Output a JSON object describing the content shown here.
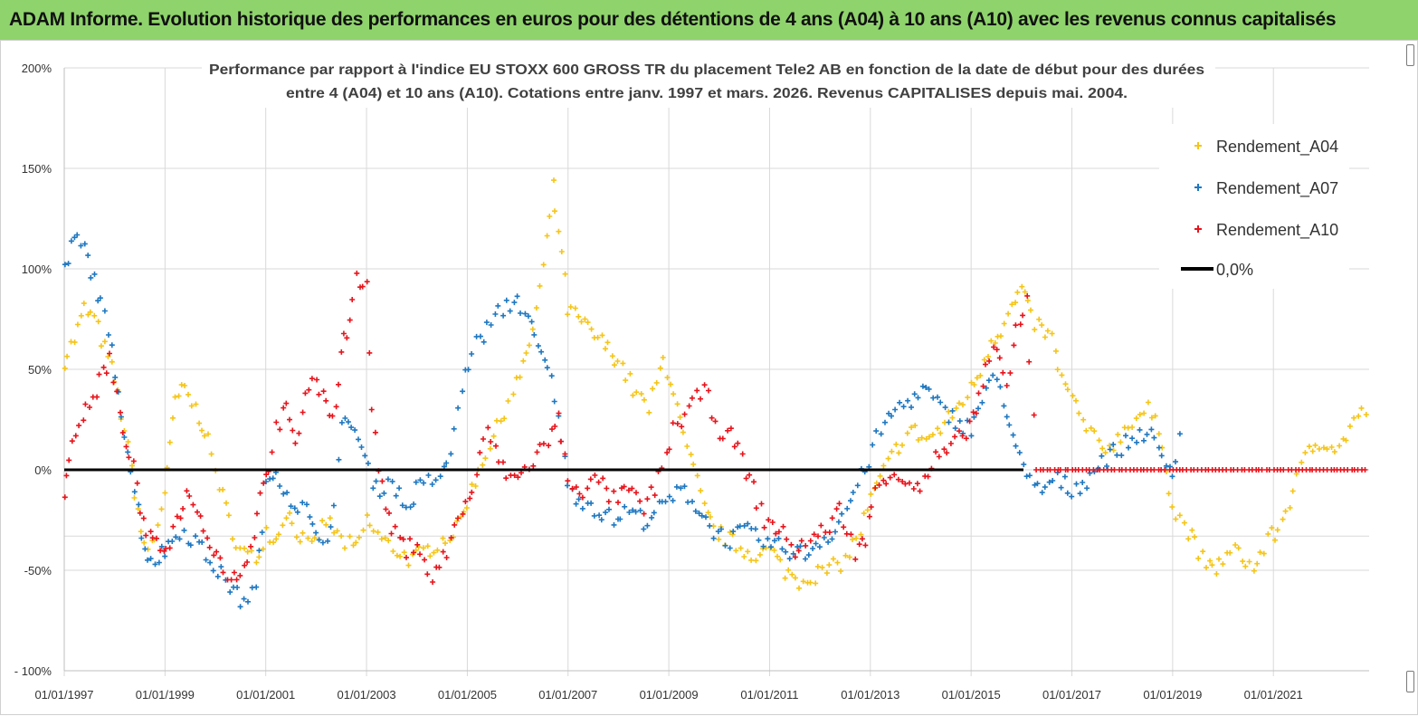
{
  "header": {
    "title": "ADAM Informe. Evolution historique des performances en euros pour des détentions de 4 ans (A04) à 10 ans (A10) avec les revenus connus capitalisés"
  },
  "colors": {
    "banner": "#8fd36c",
    "a04": "#f5c518",
    "a07": "#1f78c1",
    "a10": "#e8141c",
    "zero_line": "#000000",
    "grid": "#d9d9d9"
  },
  "chart_data": {
    "type": "scatter",
    "title_lines": [
      "Performance par rapport à l'indice EU STOXX 600 GROSS TR  du placement Tele2 AB en fonction de la date de début pour des durées",
      "entre 4 (A04) et 10 ans (A10). Cotations entre janv. 1997 et mars. 2026. Revenus CAPITALISES depuis mai. 2004."
    ],
    "x_ticks": [
      "01/01/1997",
      "01/01/1999",
      "01/01/2001",
      "01/01/2003",
      "01/01/2005",
      "01/01/2007",
      "01/01/2009",
      "01/01/2011",
      "01/01/2013",
      "01/01/2015",
      "01/01/2017",
      "01/01/2019",
      "01/01/2021"
    ],
    "y_ticks": [
      "200%",
      "150%",
      "100%",
      "50%",
      "0%",
      "-50%",
      "- 100%"
    ],
    "x_range": [
      1997.0,
      2022.9
    ],
    "y_range": [
      -100,
      200
    ],
    "legend": {
      "position": "top-right",
      "a04": "Rendement_A04",
      "a07": "Rendement_A07",
      "a10": "Rendement_A10",
      "zero": "0,0%"
    },
    "series": [
      {
        "name": "Rendement_A04",
        "key": "a04",
        "points": [
          [
            1997.0,
            55
          ],
          [
            1997.2,
            65
          ],
          [
            1997.4,
            80
          ],
          [
            1997.6,
            75
          ],
          [
            1997.8,
            60
          ],
          [
            1998.0,
            45
          ],
          [
            1998.2,
            20
          ],
          [
            1998.4,
            -10
          ],
          [
            1998.6,
            -40
          ],
          [
            1998.8,
            -35
          ],
          [
            1999.0,
            -10
          ],
          [
            1999.1,
            10
          ],
          [
            1999.2,
            35
          ],
          [
            1999.4,
            40
          ],
          [
            1999.6,
            30
          ],
          [
            1999.8,
            20
          ],
          [
            2000.0,
            0
          ],
          [
            2000.2,
            -20
          ],
          [
            2000.5,
            -40
          ],
          [
            2000.8,
            -45
          ],
          [
            2001.0,
            -30
          ],
          [
            2001.2,
            -35
          ],
          [
            2001.4,
            -20
          ],
          [
            2001.6,
            -30
          ],
          [
            2001.9,
            -40
          ],
          [
            2002.2,
            -25
          ],
          [
            2002.5,
            -35
          ],
          [
            2002.8,
            -40
          ],
          [
            2003.0,
            -25
          ],
          [
            2003.3,
            -35
          ],
          [
            2003.6,
            -40
          ],
          [
            2003.9,
            -45
          ],
          [
            2004.2,
            -40
          ],
          [
            2004.5,
            -35
          ],
          [
            2004.8,
            -30
          ],
          [
            2005.0,
            -15
          ],
          [
            2005.3,
            5
          ],
          [
            2005.6,
            20
          ],
          [
            2005.9,
            40
          ],
          [
            2006.1,
            50
          ],
          [
            2006.3,
            70
          ],
          [
            2006.5,
            100
          ],
          [
            2006.7,
            140
          ],
          [
            2006.8,
            120
          ],
          [
            2007.0,
            80
          ],
          [
            2007.2,
            75
          ],
          [
            2007.4,
            70
          ],
          [
            2007.6,
            65
          ],
          [
            2007.8,
            60
          ],
          [
            2008.0,
            55
          ],
          [
            2008.3,
            40
          ],
          [
            2008.6,
            30
          ],
          [
            2008.9,
            55
          ],
          [
            2009.1,
            40
          ],
          [
            2009.3,
            15
          ],
          [
            2009.5,
            0
          ],
          [
            2009.7,
            -20
          ],
          [
            2009.9,
            -30
          ],
          [
            2010.2,
            -35
          ],
          [
            2010.5,
            -40
          ],
          [
            2010.8,
            -42
          ],
          [
            2011.0,
            -40
          ],
          [
            2011.3,
            -50
          ],
          [
            2011.6,
            -55
          ],
          [
            2011.9,
            -52
          ],
          [
            2012.2,
            -50
          ],
          [
            2012.5,
            -45
          ],
          [
            2012.8,
            -30
          ],
          [
            2013.0,
            -15
          ],
          [
            2013.2,
            -5
          ],
          [
            2013.5,
            10
          ],
          [
            2013.8,
            20
          ],
          [
            2014.1,
            15
          ],
          [
            2014.4,
            20
          ],
          [
            2014.7,
            30
          ],
          [
            2015.0,
            40
          ],
          [
            2015.2,
            50
          ],
          [
            2015.4,
            65
          ],
          [
            2015.6,
            70
          ],
          [
            2015.8,
            80
          ],
          [
            2016.0,
            90
          ],
          [
            2016.2,
            75
          ],
          [
            2016.4,
            70
          ],
          [
            2016.6,
            65
          ],
          [
            2016.8,
            45
          ],
          [
            2017.0,
            35
          ],
          [
            2017.3,
            20
          ],
          [
            2017.6,
            10
          ],
          [
            2017.9,
            15
          ],
          [
            2018.2,
            25
          ],
          [
            2018.5,
            30
          ],
          [
            2018.8,
            15
          ],
          [
            2019.0,
            -20
          ],
          [
            2019.3,
            -30
          ],
          [
            2019.6,
            -45
          ],
          [
            2019.8,
            -50
          ],
          [
            2020.0,
            -45
          ],
          [
            2020.3,
            -40
          ],
          [
            2020.6,
            -50
          ],
          [
            2020.9,
            -35
          ],
          [
            2021.1,
            -30
          ],
          [
            2021.4,
            -10
          ],
          [
            2021.7,
            10
          ],
          [
            2022.0,
            15
          ],
          [
            2022.3,
            10
          ],
          [
            2022.6,
            25
          ],
          [
            2022.9,
            30
          ]
        ]
      },
      {
        "name": "Rendement_A07",
        "key": "a07",
        "points": [
          [
            1997.0,
            100
          ],
          [
            1997.2,
            115
          ],
          [
            1997.4,
            110
          ],
          [
            1997.6,
            95
          ],
          [
            1997.8,
            75
          ],
          [
            1998.0,
            50
          ],
          [
            1998.2,
            20
          ],
          [
            1998.4,
            -10
          ],
          [
            1998.6,
            -40
          ],
          [
            1998.8,
            -45
          ],
          [
            1999.0,
            -40
          ],
          [
            1999.3,
            -30
          ],
          [
            1999.6,
            -35
          ],
          [
            1999.9,
            -45
          ],
          [
            2000.2,
            -55
          ],
          [
            2000.5,
            -65
          ],
          [
            2000.8,
            -60
          ],
          [
            2001.0,
            -10
          ],
          [
            2001.2,
            0
          ],
          [
            2001.5,
            -15
          ],
          [
            2001.8,
            -20
          ],
          [
            2002.0,
            -35
          ],
          [
            2002.3,
            -30
          ],
          [
            2002.5,
            20
          ],
          [
            2002.7,
            25
          ],
          [
            2002.9,
            10
          ],
          [
            2003.2,
            -10
          ],
          [
            2003.5,
            -5
          ],
          [
            2003.8,
            -20
          ],
          [
            2004.0,
            -10
          ],
          [
            2004.3,
            -5
          ],
          [
            2004.6,
            0
          ],
          [
            2004.9,
            40
          ],
          [
            2005.1,
            60
          ],
          [
            2005.4,
            70
          ],
          [
            2005.7,
            80
          ],
          [
            2006.0,
            85
          ],
          [
            2006.2,
            75
          ],
          [
            2006.4,
            60
          ],
          [
            2006.6,
            50
          ],
          [
            2006.8,
            30
          ],
          [
            2007.0,
            -10
          ],
          [
            2007.3,
            -15
          ],
          [
            2007.6,
            -20
          ],
          [
            2007.9,
            -25
          ],
          [
            2008.2,
            -20
          ],
          [
            2008.5,
            -25
          ],
          [
            2008.8,
            -20
          ],
          [
            2009.0,
            -15
          ],
          [
            2009.3,
            -10
          ],
          [
            2009.6,
            -20
          ],
          [
            2009.9,
            -30
          ],
          [
            2010.2,
            -35
          ],
          [
            2010.5,
            -30
          ],
          [
            2010.8,
            -35
          ],
          [
            2011.1,
            -38
          ],
          [
            2011.4,
            -40
          ],
          [
            2011.7,
            -42
          ],
          [
            2012.0,
            -35
          ],
          [
            2012.3,
            -30
          ],
          [
            2012.6,
            -15
          ],
          [
            2012.9,
            0
          ],
          [
            2013.2,
            20
          ],
          [
            2013.5,
            30
          ],
          [
            2013.8,
            35
          ],
          [
            2014.1,
            40
          ],
          [
            2014.4,
            30
          ],
          [
            2014.7,
            25
          ],
          [
            2015.0,
            20
          ],
          [
            2015.3,
            40
          ],
          [
            2015.5,
            45
          ],
          [
            2015.7,
            30
          ],
          [
            2015.9,
            10
          ],
          [
            2016.1,
            -5
          ],
          [
            2016.4,
            -10
          ],
          [
            2016.7,
            -5
          ],
          [
            2017.0,
            -10
          ],
          [
            2017.3,
            -5
          ],
          [
            2017.6,
            5
          ],
          [
            2017.9,
            10
          ],
          [
            2018.2,
            15
          ],
          [
            2018.5,
            20
          ],
          [
            2018.8,
            5
          ],
          [
            2019.0,
            0
          ],
          [
            2019.2,
            25
          ]
        ]
      },
      {
        "name": "Rendement_A10",
        "key": "a10",
        "points": [
          [
            1997.0,
            -10
          ],
          [
            1997.1,
            5
          ],
          [
            1997.3,
            25
          ],
          [
            1997.5,
            30
          ],
          [
            1997.7,
            45
          ],
          [
            1997.9,
            55
          ],
          [
            1998.1,
            25
          ],
          [
            1998.3,
            10
          ],
          [
            1998.5,
            -20
          ],
          [
            1998.7,
            -35
          ],
          [
            1998.9,
            -40
          ],
          [
            1999.1,
            -35
          ],
          [
            1999.3,
            -20
          ],
          [
            1999.5,
            -10
          ],
          [
            1999.7,
            -25
          ],
          [
            1999.9,
            -35
          ],
          [
            2000.1,
            -45
          ],
          [
            2000.3,
            -55
          ],
          [
            2000.5,
            -50
          ],
          [
            2000.7,
            -40
          ],
          [
            2000.9,
            -10
          ],
          [
            2001.0,
            -5
          ],
          [
            2001.2,
            20
          ],
          [
            2001.4,
            30
          ],
          [
            2001.6,
            10
          ],
          [
            2001.8,
            40
          ],
          [
            2002.0,
            45
          ],
          [
            2002.2,
            30
          ],
          [
            2002.4,
            30
          ],
          [
            2002.5,
            60
          ],
          [
            2002.6,
            70
          ],
          [
            2002.8,
            95
          ],
          [
            2003.0,
            90
          ],
          [
            2003.1,
            30
          ],
          [
            2003.3,
            -10
          ],
          [
            2003.5,
            -30
          ],
          [
            2003.8,
            -40
          ],
          [
            2004.0,
            -35
          ],
          [
            2004.3,
            -55
          ],
          [
            2004.6,
            -40
          ],
          [
            2004.9,
            -20
          ],
          [
            2005.1,
            -10
          ],
          [
            2005.4,
            20
          ],
          [
            2005.7,
            0
          ],
          [
            2006.0,
            -5
          ],
          [
            2006.3,
            5
          ],
          [
            2006.6,
            15
          ],
          [
            2006.8,
            25
          ],
          [
            2007.0,
            -5
          ],
          [
            2007.3,
            -10
          ],
          [
            2007.6,
            -5
          ],
          [
            2007.9,
            -15
          ],
          [
            2008.2,
            -10
          ],
          [
            2008.5,
            -20
          ],
          [
            2008.8,
            -5
          ],
          [
            2009.1,
            20
          ],
          [
            2009.4,
            30
          ],
          [
            2009.7,
            40
          ],
          [
            2010.0,
            20
          ],
          [
            2010.3,
            15
          ],
          [
            2010.6,
            -5
          ],
          [
            2010.9,
            -25
          ],
          [
            2011.2,
            -30
          ],
          [
            2011.5,
            -40
          ],
          [
            2011.8,
            -35
          ],
          [
            2012.1,
            -30
          ],
          [
            2012.4,
            -20
          ],
          [
            2012.7,
            -40
          ],
          [
            2012.9,
            -35
          ],
          [
            2013.1,
            -10
          ],
          [
            2013.4,
            0
          ],
          [
            2013.7,
            -5
          ],
          [
            2014.0,
            -10
          ],
          [
            2014.3,
            5
          ],
          [
            2014.6,
            10
          ],
          [
            2014.9,
            20
          ],
          [
            2015.1,
            30
          ],
          [
            2015.3,
            50
          ],
          [
            2015.5,
            60
          ],
          [
            2015.7,
            40
          ],
          [
            2015.9,
            70
          ],
          [
            2016.1,
            85
          ],
          [
            2016.3,
            0
          ],
          [
            2017.0,
            0
          ],
          [
            2018.0,
            0
          ],
          [
            2019.0,
            0
          ],
          [
            2020.0,
            0
          ],
          [
            2021.0,
            0
          ],
          [
            2022.0,
            0
          ],
          [
            2022.9,
            0
          ]
        ]
      }
    ]
  }
}
